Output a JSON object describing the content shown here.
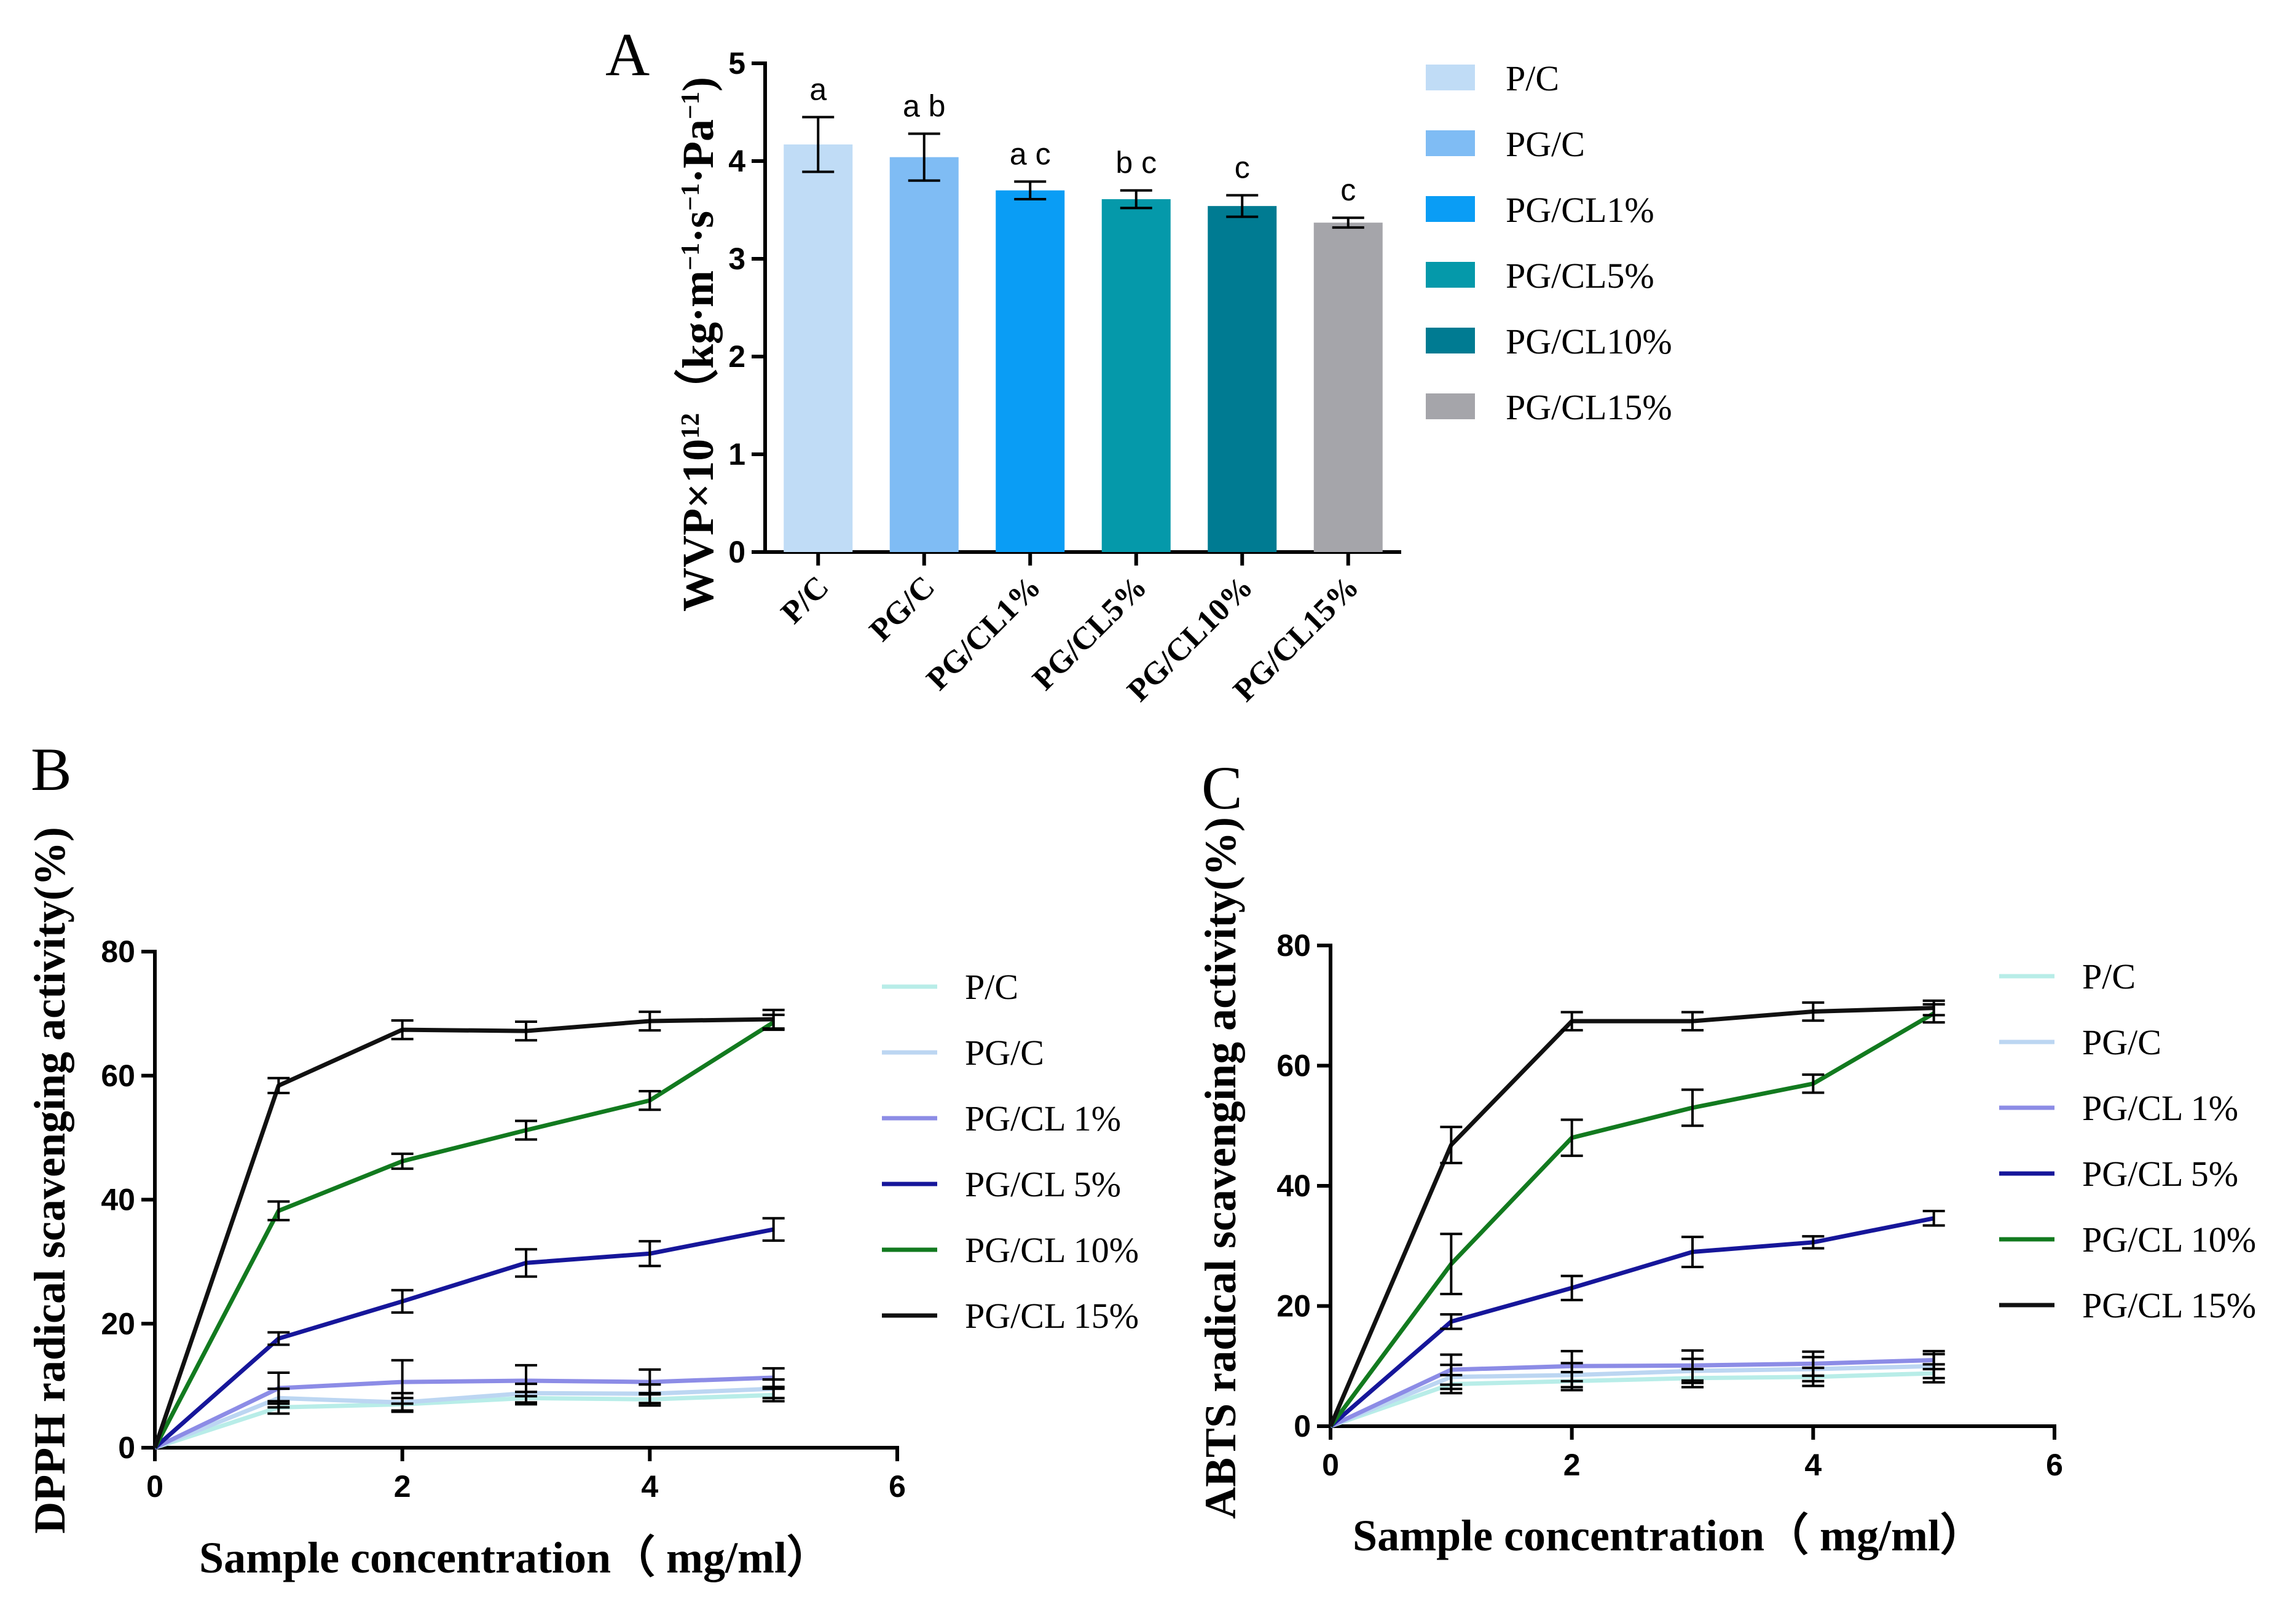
{
  "chart_data": [
    {
      "panel": "A",
      "type": "bar",
      "ylabel_main": "WVP×10",
      "ylabel_sup": "12",
      "ylabel_rest": "（kg·m",
      "ylabel_parts": [
        "−1",
        "·s",
        "−1",
        "·Pa",
        "−1",
        ")"
      ],
      "ylim": [
        0,
        5
      ],
      "yticks": [
        "0",
        "1",
        "2",
        "3",
        "4",
        "5"
      ],
      "categories": [
        "P/C",
        "PG/C",
        "PG/CL1%",
        "PG/CL5%",
        "PG/CL10%",
        "PG/CL15%"
      ],
      "values": [
        4.17,
        4.04,
        3.7,
        3.61,
        3.54,
        3.37
      ],
      "errors": [
        0.28,
        0.24,
        0.09,
        0.09,
        0.11,
        0.05
      ],
      "significance": [
        "a",
        "a b",
        "a c",
        "b c",
        "c",
        "c"
      ],
      "colors": [
        "#c0dcf6",
        "#7fbcf4",
        "#0a9df5",
        "#0599aa",
        "#007b92",
        "#a5a5aa"
      ],
      "legend": [
        "P/C",
        "PG/C",
        "PG/CL1%",
        "PG/CL5%",
        "PG/CL10%",
        "PG/CL15%"
      ]
    },
    {
      "panel": "B",
      "type": "line",
      "xlabel": "Sample concentration（ mg/ml）",
      "ylabel": "DPPH radical scavenging activity(%)",
      "xlim": [
        0,
        6
      ],
      "ylim": [
        0,
        80
      ],
      "xticks": [
        "0",
        "2",
        "4",
        "6"
      ],
      "yticks": [
        "0",
        "20",
        "40",
        "60",
        "80"
      ],
      "x": [
        0,
        1,
        2,
        3,
        4,
        5
      ],
      "series": [
        {
          "name": "P/C",
          "color": "#b8ede8",
          "values": [
            0,
            6.5,
            7.0,
            8.0,
            7.8,
            8.5
          ],
          "errors": [
            0,
            1.0,
            1.0,
            1.0,
            1.0,
            1.0
          ]
        },
        {
          "name": "PG/C",
          "color": "#bcd6f2",
          "values": [
            0,
            8.0,
            7.3,
            8.8,
            8.7,
            9.5
          ],
          "errors": [
            0,
            1.5,
            1.5,
            1.5,
            1.5,
            1.5
          ]
        },
        {
          "name": "PG/CL 1%",
          "color": "#8c8ce6",
          "values": [
            0,
            9.6,
            10.6,
            10.8,
            10.6,
            11.3
          ],
          "errors": [
            0,
            2.5,
            3.5,
            2.5,
            2.0,
            1.5
          ]
        },
        {
          "name": "PG/CL 5%",
          "color": "#16169a",
          "values": [
            0,
            17.6,
            23.6,
            29.8,
            31.3,
            35.2
          ],
          "errors": [
            0,
            1.0,
            1.8,
            2.2,
            2.0,
            1.8
          ]
        },
        {
          "name": "PG/CL 10%",
          "color": "#127a1f",
          "values": [
            0,
            38.2,
            46.2,
            51.2,
            56.0,
            68.6
          ],
          "errors": [
            0,
            1.5,
            1.2,
            1.5,
            1.5,
            1.2
          ]
        },
        {
          "name": "PG/CL 15%",
          "color": "#111111",
          "values": [
            0,
            58.4,
            67.4,
            67.2,
            68.8,
            69.1
          ],
          "errors": [
            0,
            1.2,
            1.5,
            1.5,
            1.5,
            1.5
          ]
        }
      ]
    },
    {
      "panel": "C",
      "type": "line",
      "xlabel": "Sample concentration（ mg/ml）",
      "ylabel": "ABTS radical scavenging activity(%)",
      "xlim": [
        0,
        6
      ],
      "ylim": [
        0,
        80
      ],
      "xticks": [
        "0",
        "2",
        "4",
        "6"
      ],
      "yticks": [
        "0",
        "20",
        "40",
        "60",
        "80"
      ],
      "x": [
        0,
        1,
        2,
        3,
        4,
        5
      ],
      "series": [
        {
          "name": "P/C",
          "color": "#b8ede8",
          "values": [
            0,
            7.0,
            7.5,
            8.0,
            8.2,
            8.8
          ],
          "errors": [
            0,
            1.5,
            1.5,
            1.5,
            1.5,
            1.5
          ]
        },
        {
          "name": "PG/C",
          "color": "#bcd6f2",
          "values": [
            0,
            8.2,
            8.5,
            9.2,
            9.5,
            10.0
          ],
          "errors": [
            0,
            2.0,
            2.0,
            2.0,
            2.0,
            2.0
          ]
        },
        {
          "name": "PG/CL 1%",
          "color": "#8c8ce6",
          "values": [
            0,
            9.4,
            10.0,
            10.1,
            10.4,
            11.0
          ],
          "errors": [
            0,
            2.5,
            2.5,
            2.5,
            2.0,
            1.5
          ]
        },
        {
          "name": "PG/CL 5%",
          "color": "#16169a",
          "values": [
            0,
            17.4,
            23.0,
            29.0,
            30.6,
            34.6
          ],
          "errors": [
            0,
            1.2,
            2.0,
            2.5,
            1.0,
            1.2
          ]
        },
        {
          "name": "PG/CL 10%",
          "color": "#127a1f",
          "values": [
            0,
            27.0,
            48.0,
            53.0,
            57.0,
            68.7
          ],
          "errors": [
            0,
            5.0,
            3.0,
            3.0,
            1.5,
            1.5
          ]
        },
        {
          "name": "PG/CL 15%",
          "color": "#111111",
          "values": [
            0,
            46.8,
            67.4,
            67.4,
            69.0,
            69.6
          ],
          "errors": [
            0,
            3.0,
            1.5,
            1.5,
            1.5,
            1.2
          ]
        }
      ]
    }
  ]
}
